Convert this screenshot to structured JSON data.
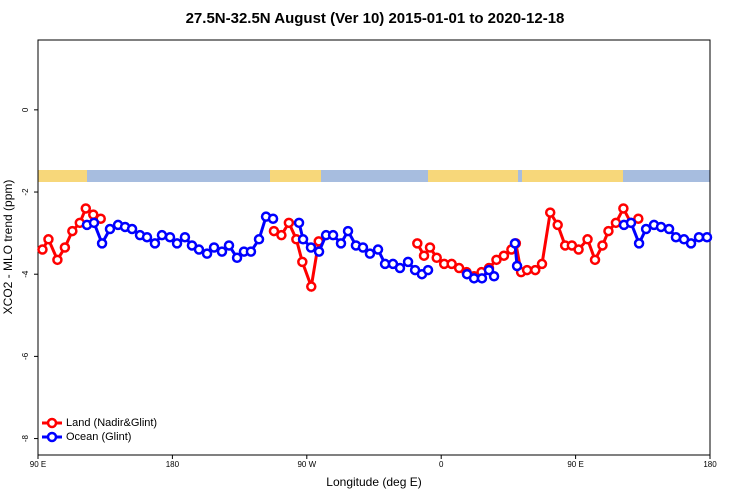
{
  "chart_data": {
    "type": "line",
    "title": "27.5N-32.5N August (Ver 10)   2015-01-01 to 2020-12-18",
    "xlabel": "Longitude (deg E)",
    "ylabel": "XCO2 - MLO trend (ppm)",
    "xlim": [
      90,
      540
    ],
    "ylim": [
      -8.4,
      1.7
    ],
    "xticks": [
      {
        "value": 90,
        "label": "90 E"
      },
      180,
      {
        "value": 270,
        "label": "90 W"
      },
      {
        "value": 360,
        "label": "0"
      },
      {
        "value": 450,
        "label": "90 E"
      },
      {
        "value": 540,
        "label": "180"
      }
    ],
    "yticks": [
      0,
      -2,
      -4,
      -6,
      -8
    ],
    "legend": "bottom-left",
    "series": [
      {
        "name": "Land (Nadir&Glint)",
        "color": "#ff0000",
        "x": [
          93,
          97,
          103,
          108,
          113,
          118,
          122,
          127,
          132,
          null,
          248,
          253,
          258,
          263,
          267,
          273,
          278,
          null,
          344,
          348.5,
          352.5,
          357,
          362,
          367,
          372,
          377,
          382,
          387,
          392,
          397,
          402,
          407,
          410,
          413.5,
          417.5,
          423,
          427.5,
          433,
          438,
          443,
          447.5,
          452,
          458,
          463,
          468,
          472,
          477,
          482,
          487,
          492
        ],
        "values": [
          -3.4,
          -3.15,
          -3.65,
          -3.35,
          -2.95,
          -2.75,
          -2.4,
          -2.55,
          -2.65,
          null,
          -2.95,
          -3.05,
          -2.75,
          -3.15,
          -3.7,
          -4.3,
          -3.2,
          null,
          -3.25,
          -3.55,
          -3.35,
          -3.6,
          -3.75,
          -3.75,
          -3.85,
          -3.95,
          -4.05,
          -3.95,
          -3.85,
          -3.65,
          -3.55,
          -3.4,
          -3.25,
          -3.95,
          -3.9,
          -3.9,
          -3.75,
          -2.5,
          -2.8,
          -3.3,
          -3.3,
          -3.4,
          -3.15,
          -3.65,
          -3.3,
          -2.95,
          -2.75,
          -2.4,
          -2.75,
          -2.65
        ]
      },
      {
        "name": "Ocean (Glint)",
        "color": "#0000ff",
        "x": [
          122.8,
          127.5,
          132.9,
          138.2,
          143.6,
          148.3,
          153,
          158.3,
          163,
          168.3,
          173,
          178.4,
          183.1,
          188.4,
          193.1,
          197.8,
          203.2,
          207.9,
          213.2,
          217.9,
          223.3,
          227.9,
          232.6,
          238,
          242.7,
          247.4,
          null,
          264.8,
          267.5,
          272.8,
          278.2,
          282.9,
          287.6,
          292.9,
          297.6,
          302.9,
          307.6,
          312.3,
          317.7,
          322.4,
          327.7,
          332.4,
          337.8,
          342.5,
          347.1,
          351.2,
          null,
          377.3,
          382,
          387.3,
          392,
          395.4,
          null,
          409.4,
          410.8,
          null,
          482.4,
          487.1,
          492.5,
          497.2,
          502.5,
          507.2,
          512.6,
          517.2,
          522.6,
          527.3,
          532.6,
          538
        ],
        "values": [
          -2.8,
          -2.75,
          -3.25,
          -2.9,
          -2.8,
          -2.85,
          -2.9,
          -3.05,
          -3.1,
          -3.25,
          -3.05,
          -3.1,
          -3.25,
          -3.1,
          -3.3,
          -3.4,
          -3.5,
          -3.35,
          -3.45,
          -3.3,
          -3.6,
          -3.45,
          -3.45,
          -3.15,
          -2.6,
          -2.65,
          null,
          -2.75,
          -3.15,
          -3.35,
          -3.45,
          -3.05,
          -3.05,
          -3.25,
          -2.95,
          -3.3,
          -3.35,
          -3.5,
          -3.4,
          -3.75,
          -3.75,
          -3.85,
          -3.7,
          -3.9,
          -4.0,
          -3.9,
          null,
          -4.0,
          -4.1,
          -4.1,
          -3.9,
          -4.05,
          null,
          -3.25,
          -3.8,
          null,
          -2.8,
          -2.75,
          -3.25,
          -2.9,
          -2.8,
          -2.85,
          -2.9,
          -3.1,
          -3.15,
          -3.25,
          -3.1,
          -3.1
        ]
      }
    ]
  }
}
